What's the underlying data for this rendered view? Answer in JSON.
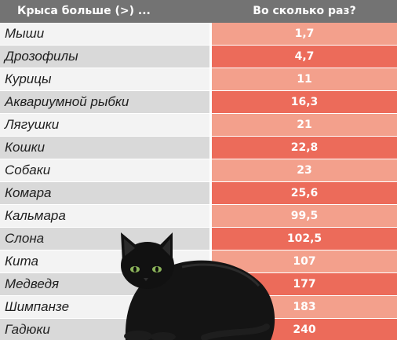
{
  "header": {
    "left": "Крыса больше (>) ...",
    "right": "Во сколько раз?"
  },
  "rows": [
    {
      "name": "Мыши",
      "value": "1,7"
    },
    {
      "name": "Дрозофилы",
      "value": "4,7"
    },
    {
      "name": "Курицы",
      "value": "11"
    },
    {
      "name": "Аквариумной рыбки",
      "value": "16,3"
    },
    {
      "name": "Лягушки",
      "value": "21"
    },
    {
      "name": "Кошки",
      "value": "22,8"
    },
    {
      "name": "Собаки",
      "value": "23"
    },
    {
      "name": "Комара",
      "value": "25,6"
    },
    {
      "name": "Кальмара",
      "value": "99,5"
    },
    {
      "name": "Слона",
      "value": "102,5"
    },
    {
      "name": "Кита",
      "value": "107"
    },
    {
      "name": "Медведя",
      "value": "177"
    },
    {
      "name": "Шимпанзе",
      "value": "183"
    },
    {
      "name": "Гадюки",
      "value": "240"
    }
  ],
  "colors": {
    "header_bg": "#737373",
    "row_light": "#f3f3f3",
    "row_dark": "#d9d9d9",
    "val_light": "#f3a08c",
    "val_dark": "#ec6b5a"
  },
  "illustration": "black-cat-icon"
}
